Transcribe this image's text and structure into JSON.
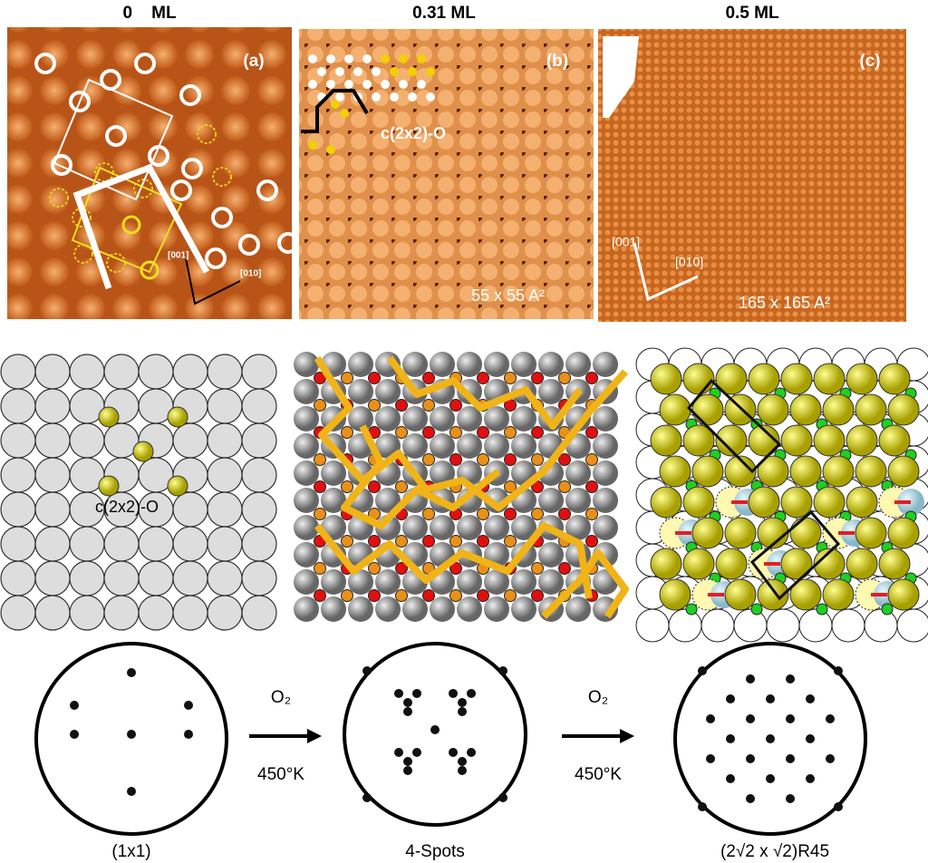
{
  "panels": [
    {
      "coverage": "0    ML",
      "label": "(a)",
      "axes": [
        "[001]",
        "[010]"
      ]
    },
    {
      "coverage": "0.31 ML",
      "label": "(b)",
      "annotation": "c(2x2)-O",
      "scale": "55 x 55 A²"
    },
    {
      "coverage": "0.5 ML",
      "label": "(c)",
      "axes": [
        "[001]",
        "[010]"
      ],
      "scale": "165 x 165 A²"
    }
  ],
  "models": [
    {
      "annotation": "c(2x2)-O"
    }
  ],
  "leed": {
    "patterns": [
      "(1x1)",
      "4-Spots",
      "(2√2 x √2)R45"
    ],
    "transitions": [
      {
        "gas": "O₂",
        "temperature": "450°K"
      },
      {
        "gas": "O₂",
        "temperature": "450°K"
      }
    ]
  }
}
